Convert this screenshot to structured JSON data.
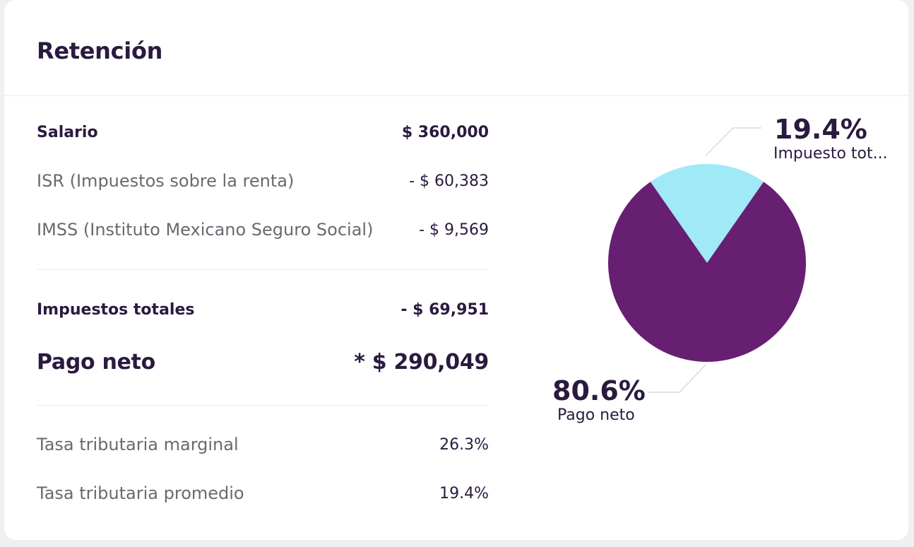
{
  "card": {
    "title": "Retención"
  },
  "summary": {
    "rows": [
      {
        "label": "Salario",
        "value": "$ 360,000"
      },
      {
        "label": "ISR (Impuestos sobre la renta)",
        "value": "- $ 60,383"
      },
      {
        "label": "IMSS (Instituto Mexicano Seguro Social)",
        "value": "- $ 9,569"
      },
      {
        "label": "Impuestos totales",
        "value": "- $ 69,951"
      },
      {
        "label": "Pago neto",
        "value": "* $ 290,049"
      },
      {
        "label": "Tasa tributaria marginal",
        "value": "26.3%"
      },
      {
        "label": "Tasa tributaria promedio",
        "value": "19.4%"
      }
    ]
  },
  "colors": {
    "tax_slice": "#a0e9f6",
    "net_slice": "#671f72",
    "text_dark": "#2b1a3f",
    "text_muted": "#6b6870"
  },
  "chart_data": {
    "type": "pie",
    "slices": [
      {
        "name": "Impuesto tot...",
        "percent_label": "19.4%",
        "value": 19.4,
        "color": "#a0e9f6"
      },
      {
        "name": "Pago neto",
        "percent_label": "80.6%",
        "value": 80.6,
        "color": "#671f72"
      }
    ]
  }
}
